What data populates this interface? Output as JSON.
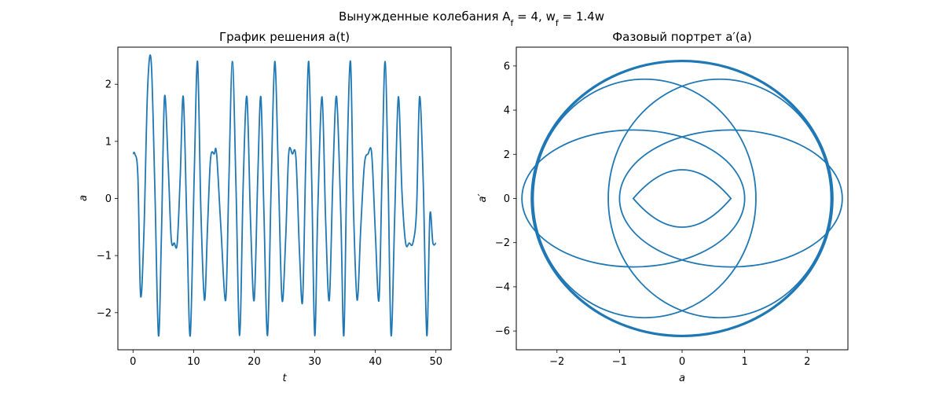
{
  "figure": {
    "suptitle": "Вынужденные колебания A_f = 4, w_f = 1.4w"
  },
  "chart_data": [
    {
      "type": "line",
      "title": "График решения a(t)",
      "xlabel": "t",
      "ylabel": "a",
      "xlim": [
        -2.5,
        52.5
      ],
      "ylim": [
        -2.65,
        2.65
      ],
      "xticks": [
        0,
        10,
        20,
        30,
        40,
        50
      ],
      "yticks": [
        -2,
        -1,
        0,
        1,
        2
      ],
      "xtick_labels": [
        "0",
        "10",
        "20",
        "30",
        "40",
        "50"
      ],
      "ytick_labels": [
        "−2",
        "−1",
        "0",
        "1",
        "2"
      ],
      "line_color": "#1f77b4",
      "series": [
        {
          "x": [
            0,
            0.3,
            0.8,
            1.25,
            1.8,
            2.4,
            3.0,
            3.6,
            4.2,
            4.7,
            5.2,
            5.8,
            6.3,
            6.8,
            7.3,
            7.8,
            8.3,
            8.9,
            9.45,
            10.1,
            10.65,
            11.2,
            11.8,
            12.3,
            12.8,
            13.4,
            13.8,
            14.5,
            15.3,
            15.8,
            16.4,
            17.0,
            17.6,
            18.2,
            18.8,
            19.4,
            20.0,
            20.6,
            21.1,
            21.6,
            22.2,
            22.8,
            23.4,
            24.0,
            24.6,
            25.2,
            25.7,
            26.3,
            26.9,
            27.5,
            28.0,
            28.5,
            29.0,
            29.5,
            30.0,
            30.5,
            31.2,
            31.8,
            32.4,
            33.0,
            33.6,
            34.3,
            34.8,
            35.3,
            35.9,
            36.4,
            37.0,
            37.6,
            38.2,
            38.8,
            39.4,
            40.0,
            40.6,
            41.1,
            41.6,
            42.1,
            42.6,
            43.2,
            43.8,
            44.4,
            45.0,
            45.6,
            46.2,
            46.8,
            47.3,
            47.9,
            48.5,
            49.0,
            49.5,
            50.0
          ],
          "y": [
            0.78,
            0.78,
            0.4,
            -1.7,
            -0.6,
            1.9,
            2.4,
            0.2,
            -2.4,
            -0.6,
            1.78,
            0.6,
            -0.7,
            -0.78,
            -0.78,
            0.4,
            1.78,
            -0.5,
            -2.4,
            0.4,
            2.4,
            -0.2,
            -1.78,
            -0.5,
            0.7,
            0.78,
            0.78,
            -0.5,
            -1.78,
            0.2,
            2.4,
            0.2,
            -2.4,
            0.3,
            1.78,
            -0.4,
            -1.78,
            0.4,
            1.78,
            -0.2,
            -2.4,
            0.2,
            2.4,
            0.4,
            -1.78,
            -0.7,
            0.78,
            0.78,
            0.7,
            -1.0,
            -1.78,
            0.6,
            2.4,
            0.3,
            -2.4,
            -0.2,
            1.78,
            -0.4,
            -1.78,
            0.4,
            1.78,
            -0.3,
            -2.4,
            0.5,
            2.4,
            -0.2,
            -1.78,
            -0.5,
            0.6,
            0.78,
            0.78,
            -0.6,
            -1.78,
            0.4,
            2.4,
            0.4,
            -2.4,
            -0.3,
            1.78,
            0.1,
            -0.78,
            -0.78,
            -0.78,
            -0.2,
            1.78,
            0.3,
            -2.4,
            -0.3,
            -0.78,
            -0.78
          ]
        }
      ]
    },
    {
      "type": "line",
      "title": "Фазовый портрет a′(a)",
      "xlabel": "a",
      "ylabel": "a′",
      "xlim": [
        -2.65,
        2.65
      ],
      "ylim": [
        -6.85,
        6.85
      ],
      "xticks": [
        -2,
        -1,
        0,
        1,
        2
      ],
      "yticks": [
        -6,
        -4,
        -2,
        0,
        2,
        4,
        6
      ],
      "xtick_labels": [
        "−2",
        "−1",
        "0",
        "1",
        "2"
      ],
      "ytick_labels": [
        "−6",
        "−4",
        "−2",
        "0",
        "2",
        "4",
        "6"
      ],
      "line_color": "#1f77b4",
      "curves": [
        {
          "cx": 0,
          "cy": 0,
          "rx": 2.41,
          "ry": 6.25
        },
        {
          "cx": 0,
          "cy": 0,
          "rx": 2.39,
          "ry": 6.2
        },
        {
          "cx": -0.6,
          "cy": 0,
          "rx": 1.78,
          "ry": 5.4
        },
        {
          "cx": 0.6,
          "cy": 0,
          "rx": 1.78,
          "ry": 5.4
        },
        {
          "cx": -0.78,
          "cy": 0,
          "rx": 1.78,
          "ry": 3.1
        },
        {
          "cx": 0.78,
          "cy": 0,
          "rx": 1.78,
          "ry": 3.1
        }
      ],
      "inner_lens": {
        "tip": 0.78,
        "height": 2.6
      }
    }
  ]
}
